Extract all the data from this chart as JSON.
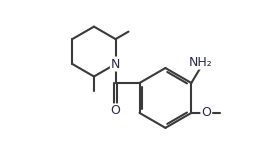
{
  "bg_color": "#ffffff",
  "line_color": "#3a3a3a",
  "text_color": "#2a2a4a",
  "figsize": [
    2.66,
    1.51
  ],
  "dpi": 100,
  "bond_lw": 1.5,
  "font_size": 8.5,
  "NH2": "NH₂",
  "O_label": "O",
  "N_label": "N"
}
